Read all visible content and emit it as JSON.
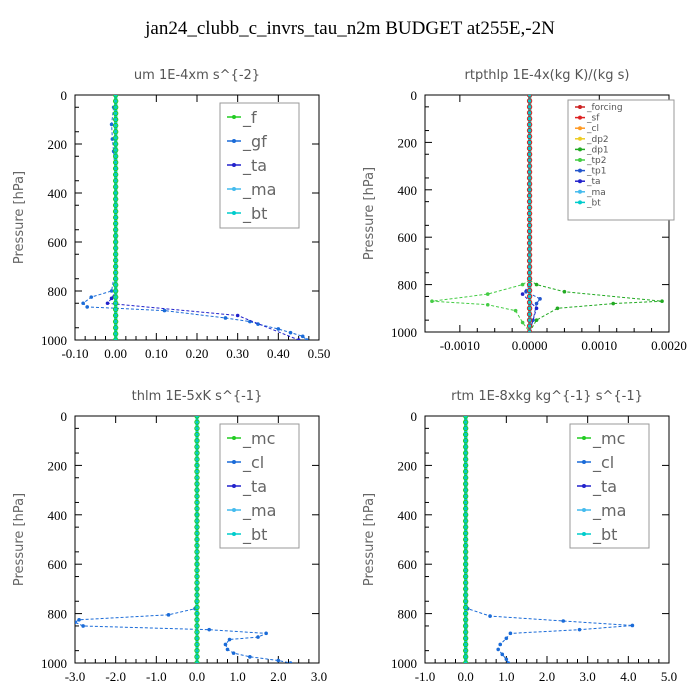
{
  "title": "jan24_clubb_c_invrs_tau_n2m  BUDGET at255E,-2N",
  "chart_data": [
    {
      "type": "line",
      "title": "um   1E-4xm s^{-2}",
      "ylabel": "Pressure [hPa]",
      "xlim": [
        -0.1,
        0.5
      ],
      "ylim": [
        1000,
        0
      ],
      "xticks": [
        "-0.10",
        "0.00",
        "0.10",
        "0.20",
        "0.30",
        "0.40",
        "0.50"
      ],
      "xtick_values": [
        -0.1,
        0.0,
        0.1,
        0.2,
        0.3,
        0.4,
        0.5
      ],
      "yticks": [
        "0",
        "200",
        "400",
        "600",
        "800",
        "1000"
      ],
      "ytick_values": [
        0,
        200,
        400,
        600,
        800,
        1000
      ],
      "legend_style": "big",
      "series": [
        {
          "name": "_f",
          "color": "#22cc22",
          "x": [
            0,
            0,
            0,
            0,
            0,
            0,
            0,
            0,
            0,
            0,
            0
          ],
          "y": [
            0,
            100,
            200,
            300,
            400,
            500,
            600,
            700,
            800,
            900,
            1000
          ]
        },
        {
          "name": "_gf",
          "color": "#1a6bd8",
          "x": [
            -0.005,
            -0.01,
            -0.008,
            -0.005,
            -0.002,
            0,
            0,
            -0.01,
            -0.06,
            -0.08,
            -0.07,
            0.12,
            0.27,
            0.33,
            0.35,
            0.4,
            0.43,
            0.46,
            0.47
          ],
          "y": [
            50,
            120,
            180,
            230,
            300,
            500,
            700,
            800,
            825,
            850,
            865,
            880,
            910,
            925,
            935,
            955,
            970,
            985,
            1000
          ]
        },
        {
          "name": "_ta",
          "color": "#2222cc",
          "x": [
            0,
            0,
            0,
            0,
            0,
            -0.01,
            -0.02,
            0.3,
            0.45
          ],
          "y": [
            0,
            200,
            400,
            600,
            800,
            830,
            850,
            900,
            1000
          ]
        },
        {
          "name": "_ma",
          "color": "#44bbee",
          "x": [
            0,
            0,
            0,
            0,
            0,
            0
          ],
          "y": [
            0,
            200,
            400,
            600,
            800,
            1000
          ]
        },
        {
          "name": "_bt",
          "color": "#00cccc",
          "x": [
            0,
            0,
            0,
            0,
            0,
            0
          ],
          "y": [
            0,
            200,
            400,
            600,
            800,
            1000
          ]
        }
      ]
    },
    {
      "type": "line",
      "title": "rtpthlp   1E-4x(kg K)/(kg s)",
      "ylabel": "Pressure [hPa]",
      "xlim": [
        -0.0015,
        0.002
      ],
      "ylim": [
        1000,
        0
      ],
      "xticks": [
        "-0.0010",
        "0.0000",
        "0.0010",
        "0.0020"
      ],
      "xtick_values": [
        -0.001,
        0.0,
        0.001,
        0.002
      ],
      "yticks": [
        "0",
        "200",
        "400",
        "600",
        "800",
        "1000"
      ],
      "ytick_values": [
        0,
        200,
        400,
        600,
        800,
        1000
      ],
      "legend_style": "small",
      "series": [
        {
          "name": "_forcing",
          "color": "#cc2222",
          "x": [
            0,
            0,
            0,
            0,
            0,
            0
          ],
          "y": [
            0,
            200,
            400,
            600,
            800,
            1000
          ]
        },
        {
          "name": "_sf",
          "color": "#dd2222",
          "x": [
            0,
            0,
            0,
            0,
            0,
            0
          ],
          "y": [
            0,
            200,
            400,
            600,
            800,
            1000
          ]
        },
        {
          "name": "_cl",
          "color": "#ff9922",
          "x": [
            0,
            0,
            0,
            0,
            0
          ],
          "y": [
            0,
            250,
            500,
            750,
            1000
          ]
        },
        {
          "name": "_dp2",
          "color": "#eecc22",
          "x": [
            0,
            0,
            0,
            0,
            0
          ],
          "y": [
            0,
            250,
            500,
            750,
            1000
          ]
        },
        {
          "name": "_dp1",
          "color": "#22aa22",
          "x": [
            0,
            0,
            0,
            0.0001,
            0.0005,
            0.0019,
            0.0012,
            0.0004,
            0.0001,
            0
          ],
          "y": [
            0,
            400,
            780,
            800,
            830,
            870,
            880,
            900,
            950,
            1000
          ]
        },
        {
          "name": "_tp2",
          "color": "#44cc44",
          "x": [
            0,
            0,
            0,
            -0.0001,
            -0.0006,
            -0.0014,
            -0.0006,
            -0.0002,
            -0.0001,
            0
          ],
          "y": [
            0,
            400,
            780,
            800,
            840,
            870,
            885,
            910,
            960,
            1000
          ]
        },
        {
          "name": "_tp1",
          "color": "#2255cc",
          "x": [
            0,
            0,
            -5e-05,
            0.00015,
            0.0001,
            5e-05,
            0
          ],
          "y": [
            0,
            800,
            830,
            860,
            880,
            950,
            1000
          ]
        },
        {
          "name": "_ta",
          "color": "#2222cc",
          "x": [
            0,
            0,
            -0.0001,
            0.0001,
            0
          ],
          "y": [
            0,
            800,
            840,
            900,
            1000
          ]
        },
        {
          "name": "_ma",
          "color": "#44bbee",
          "x": [
            0,
            0,
            0,
            0
          ],
          "y": [
            0,
            400,
            800,
            1000
          ]
        },
        {
          "name": "_bt",
          "color": "#00cccc",
          "x": [
            0,
            0,
            0,
            0
          ],
          "y": [
            0,
            400,
            800,
            1000
          ]
        }
      ]
    },
    {
      "type": "line",
      "title": "thlm   1E-5xK s^{-1}",
      "ylabel": "Pressure [hPa]",
      "xlim": [
        -3.0,
        3.0
      ],
      "ylim": [
        1000,
        0
      ],
      "xticks": [
        "-3.0",
        "-2.0",
        "-1.0",
        "0.0",
        "1.0",
        "2.0",
        "3.0"
      ],
      "xtick_values": [
        -3,
        -2,
        -1,
        0,
        1,
        2,
        3
      ],
      "yticks": [
        "0",
        "200",
        "400",
        "600",
        "800",
        "1000"
      ],
      "ytick_values": [
        0,
        200,
        400,
        600,
        800,
        1000
      ],
      "legend_style": "big",
      "series": [
        {
          "name": "_mc",
          "color": "#22cc22",
          "x": [
            0,
            0,
            0,
            0,
            0,
            0,
            0,
            0,
            0,
            0,
            0
          ],
          "y": [
            0,
            100,
            200,
            300,
            400,
            500,
            600,
            700,
            800,
            900,
            1000
          ]
        },
        {
          "name": "_cl",
          "color": "#1a6bd8",
          "x": [
            0,
            0,
            0,
            -0.05,
            -0.7,
            -2.9,
            -3.0,
            -2.8,
            0.3,
            1.7,
            1.5,
            0.8,
            0.7,
            0.75,
            0.9,
            1.3,
            2.0,
            2.3
          ],
          "y": [
            0,
            400,
            700,
            780,
            805,
            825,
            835,
            850,
            865,
            880,
            895,
            905,
            925,
            945,
            960,
            975,
            990,
            1000
          ]
        },
        {
          "name": "_ta",
          "color": "#2222cc",
          "x": [
            0,
            0,
            0,
            0
          ],
          "y": [
            0,
            400,
            800,
            1000
          ]
        },
        {
          "name": "_ma",
          "color": "#44bbee",
          "x": [
            0,
            0,
            0,
            0
          ],
          "y": [
            0,
            400,
            800,
            1000
          ]
        },
        {
          "name": "_bt",
          "color": "#00cccc",
          "x": [
            0,
            0,
            0,
            0
          ],
          "y": [
            0,
            400,
            800,
            1000
          ]
        }
      ]
    },
    {
      "type": "line",
      "title": "rtm   1E-8xkg kg^{-1} s^{-1}",
      "ylabel": "Pressure [hPa]",
      "xlim": [
        -1.0,
        5.0
      ],
      "ylim": [
        1000,
        0
      ],
      "xticks": [
        "-1.0",
        "0.0",
        "1.0",
        "2.0",
        "3.0",
        "4.0",
        "5.0"
      ],
      "xtick_values": [
        -1,
        0,
        1,
        2,
        3,
        4,
        5
      ],
      "yticks": [
        "0",
        "200",
        "400",
        "600",
        "800",
        "1000"
      ],
      "ytick_values": [
        0,
        200,
        400,
        600,
        800,
        1000
      ],
      "legend_style": "big",
      "series": [
        {
          "name": "_mc",
          "color": "#22cc22",
          "x": [
            0,
            0,
            0,
            0,
            0,
            0,
            0,
            0,
            0,
            0,
            0
          ],
          "y": [
            0,
            100,
            200,
            300,
            400,
            500,
            600,
            700,
            800,
            900,
            1000
          ]
        },
        {
          "name": "_cl",
          "color": "#1a6bd8",
          "x": [
            0,
            0,
            0,
            0.05,
            0.6,
            2.4,
            4.1,
            2.8,
            1.1,
            1.0,
            0.85,
            0.8,
            0.9,
            1.0,
            1.05
          ],
          "y": [
            0,
            400,
            700,
            780,
            810,
            830,
            848,
            865,
            880,
            900,
            925,
            945,
            965,
            985,
            1000
          ]
        },
        {
          "name": "_ta",
          "color": "#2222cc",
          "x": [
            0,
            0,
            0,
            0
          ],
          "y": [
            0,
            400,
            800,
            1000
          ]
        },
        {
          "name": "_ma",
          "color": "#44bbee",
          "x": [
            0,
            0,
            0,
            0
          ],
          "y": [
            0,
            400,
            800,
            1000
          ]
        },
        {
          "name": "_bt",
          "color": "#00cccc",
          "x": [
            0,
            0,
            0,
            0
          ],
          "y": [
            0,
            400,
            800,
            1000
          ]
        }
      ]
    }
  ]
}
